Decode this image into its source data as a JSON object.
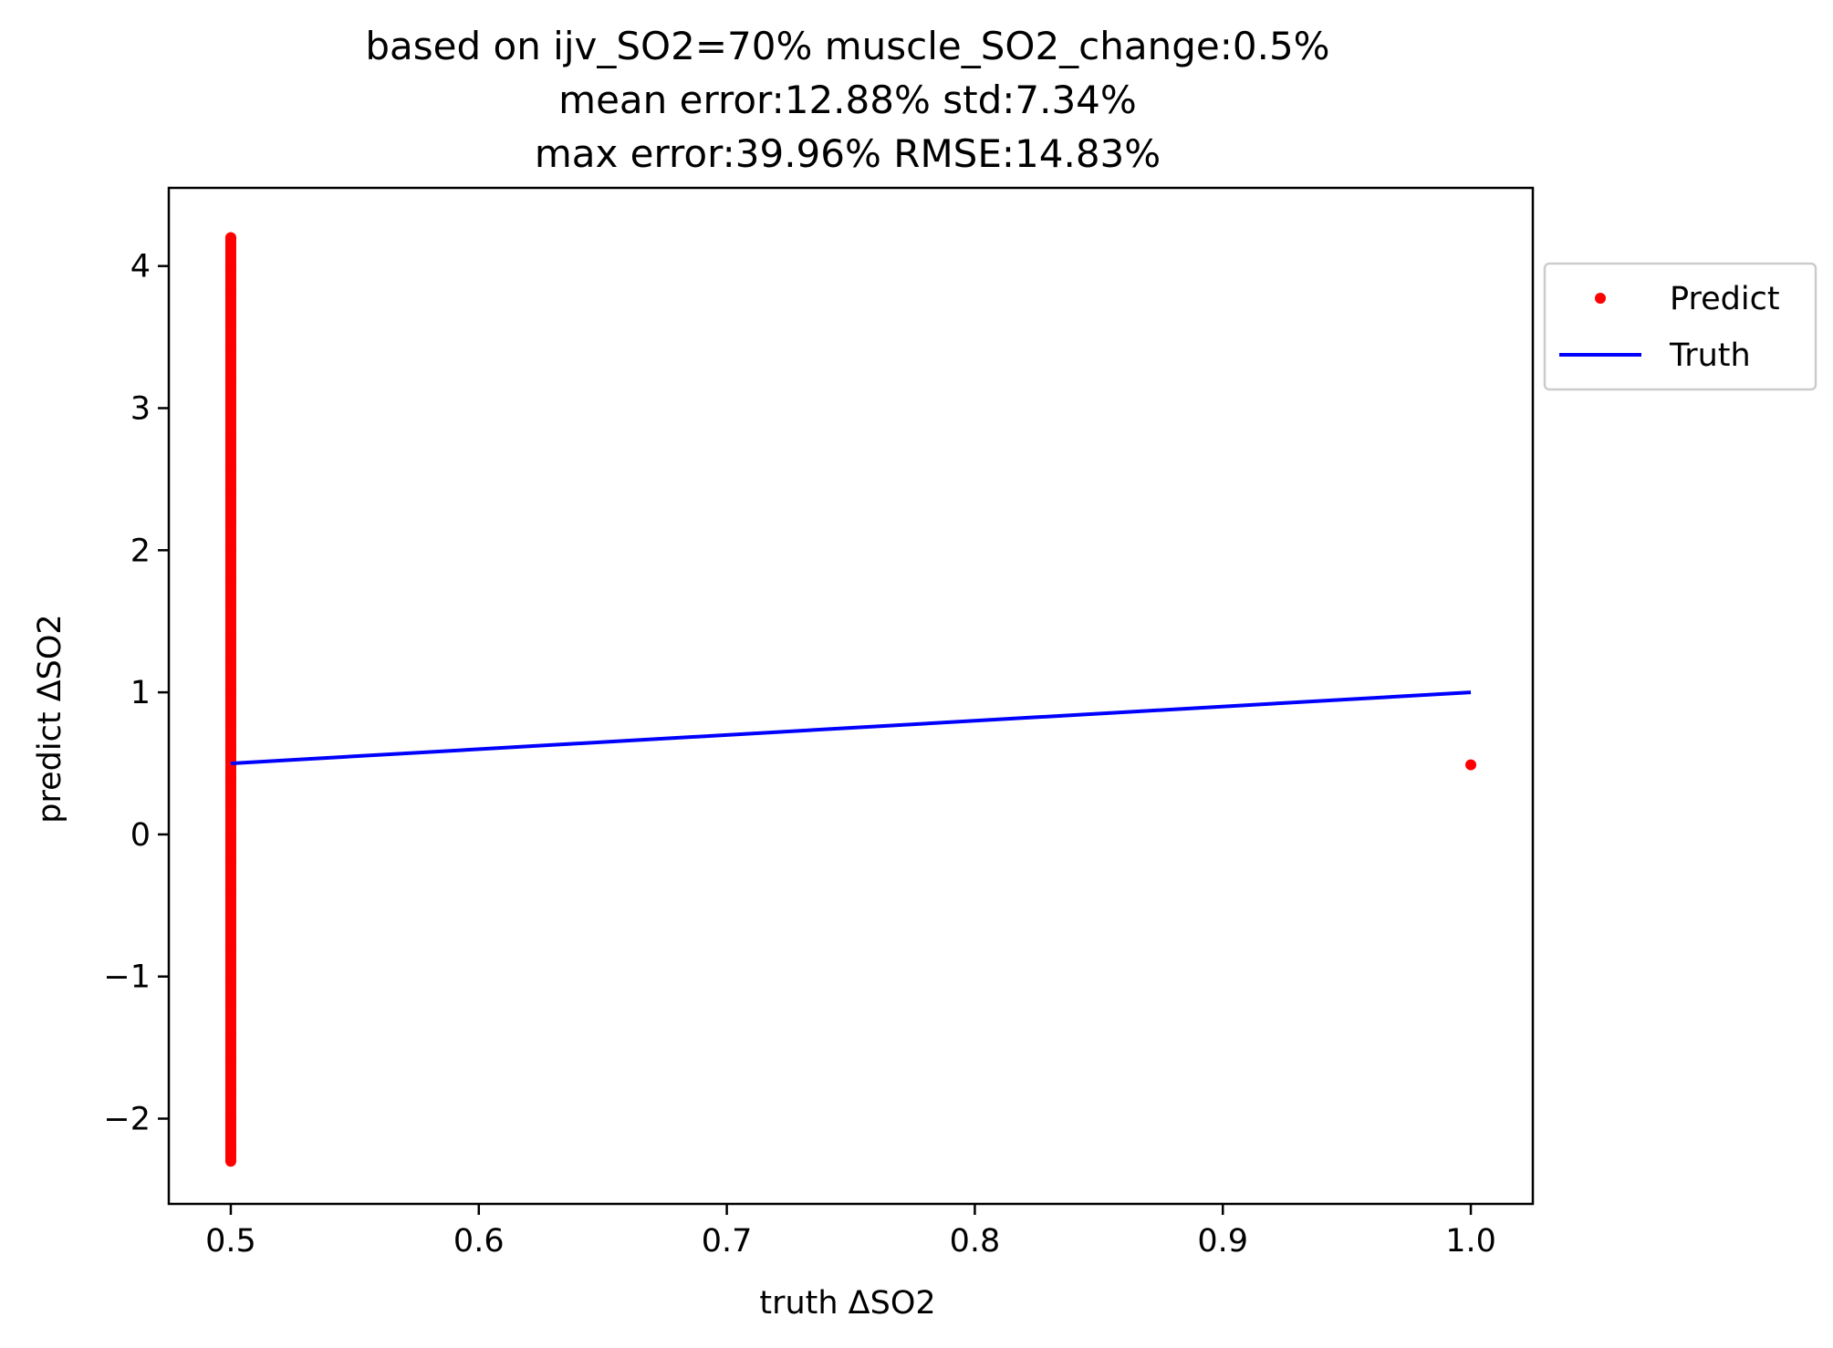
{
  "chart_data": {
    "type": "scatter",
    "title": [
      "based on ijv_SO2=70% muscle_SO2_change:0.5%",
      "mean error:12.88% std:7.34%",
      "max error:39.96% RMSE:14.83%"
    ],
    "xlabel": "truth ΔSO2",
    "ylabel": "predict ΔSO2",
    "xlim": [
      0.475,
      1.025
    ],
    "ylim": [
      -2.6,
      4.55
    ],
    "x_ticks": [
      0.5,
      0.6,
      0.7,
      0.8,
      0.9,
      1.0
    ],
    "x_tick_labels": [
      "0.5",
      "0.6",
      "0.7",
      "0.8",
      "0.9",
      "1.0"
    ],
    "y_ticks": [
      -2,
      -1,
      0,
      1,
      2,
      3,
      4
    ],
    "y_tick_labels": [
      "−2",
      "−1",
      "0",
      "1",
      "2",
      "3",
      "4"
    ],
    "grid": false,
    "legend_position": "outside right, upper",
    "series": [
      {
        "name": "Predict",
        "kind": "points",
        "color": "#ff0000",
        "points": [
          [
            0.5,
            4.2
          ],
          [
            0.5,
            4.0
          ],
          [
            0.5,
            3.8
          ],
          [
            0.5,
            3.6
          ],
          [
            0.5,
            3.4
          ],
          [
            0.5,
            3.2
          ],
          [
            0.5,
            3.0
          ],
          [
            0.5,
            2.8
          ],
          [
            0.5,
            2.6
          ],
          [
            0.5,
            2.4
          ],
          [
            0.5,
            2.2
          ],
          [
            0.5,
            2.0
          ],
          [
            0.5,
            1.8
          ],
          [
            0.5,
            1.6
          ],
          [
            0.5,
            1.4
          ],
          [
            0.5,
            1.2
          ],
          [
            0.5,
            1.0
          ],
          [
            0.5,
            0.8
          ],
          [
            0.5,
            0.6
          ],
          [
            0.5,
            0.4
          ],
          [
            0.5,
            0.2
          ],
          [
            0.5,
            0.0
          ],
          [
            0.5,
            -0.2
          ],
          [
            0.5,
            -0.4
          ],
          [
            0.5,
            -0.6
          ],
          [
            0.5,
            -0.8
          ],
          [
            0.5,
            -1.0
          ],
          [
            0.5,
            -1.2
          ],
          [
            0.5,
            -1.4
          ],
          [
            0.5,
            -1.6
          ],
          [
            0.5,
            -1.8
          ],
          [
            0.5,
            -2.0
          ],
          [
            0.5,
            -2.2
          ],
          [
            0.5,
            -2.3
          ],
          [
            1.0,
            0.49
          ]
        ]
      },
      {
        "name": "Truth",
        "kind": "line",
        "color": "#0000ff",
        "points": [
          [
            0.5,
            0.5
          ],
          [
            1.0,
            1.0
          ]
        ]
      }
    ]
  }
}
